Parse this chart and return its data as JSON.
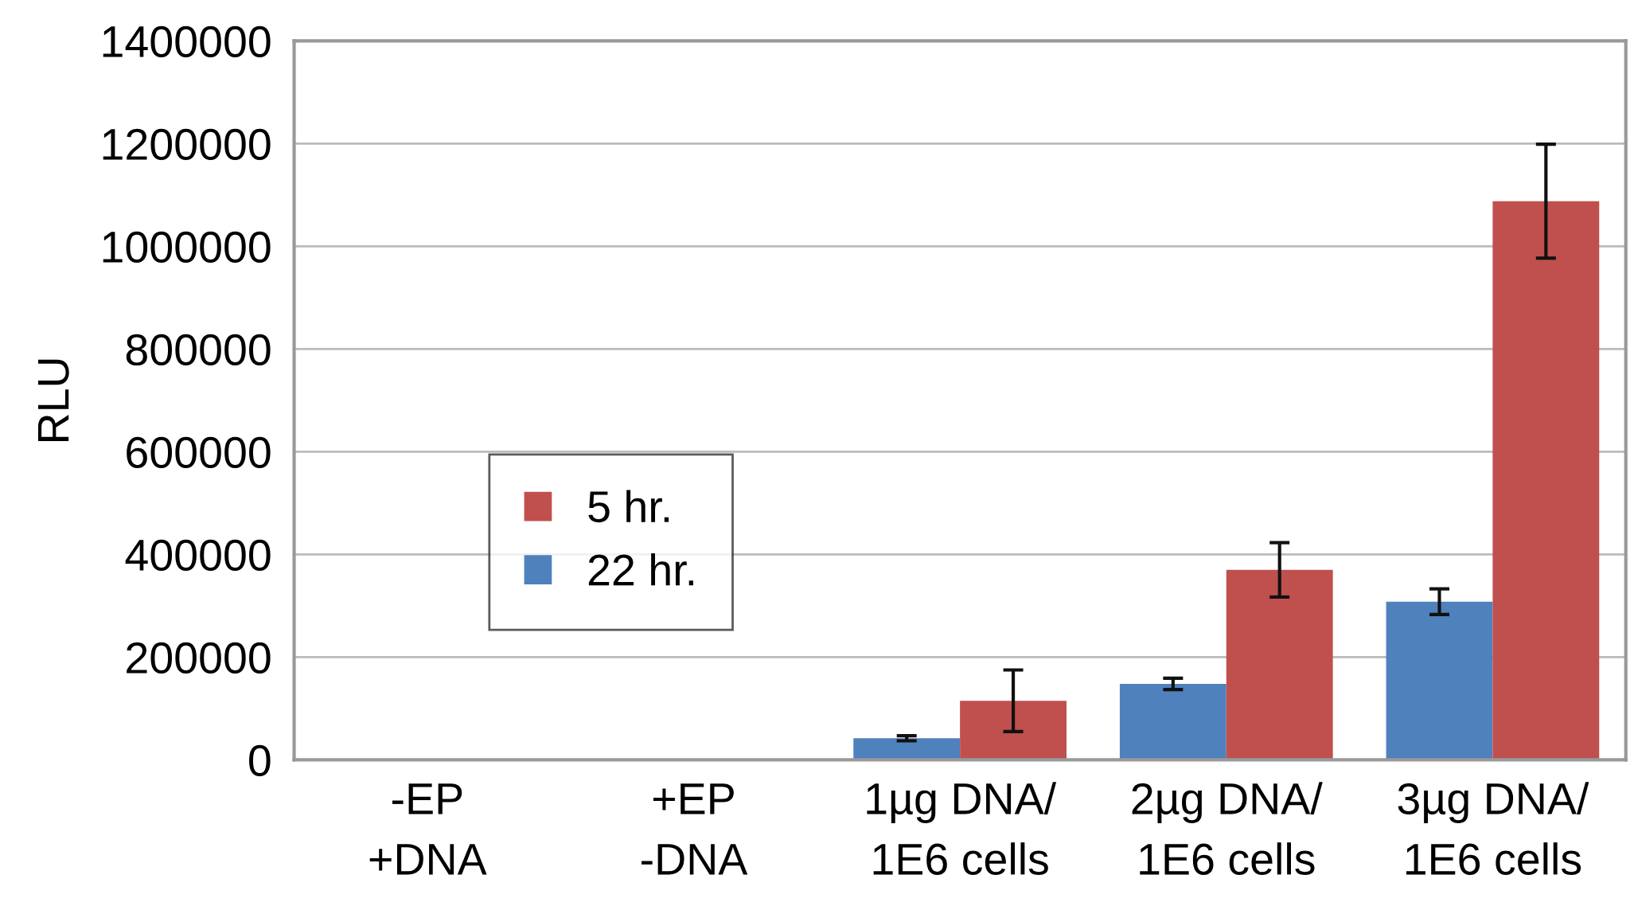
{
  "chart_data": {
    "type": "bar",
    "ylabel": "RLU",
    "categories": [
      "-EP\n+DNA",
      "+EP\n-DNA",
      "1µg DNA/\n1E6 cells",
      "2µg DNA/\n1E6 cells",
      "3µg DNA/\n1E6 cells"
    ],
    "series": [
      {
        "name": "22 hr.",
        "color": "#4f81bd",
        "values": [
          0,
          0,
          42000,
          148000,
          308000
        ],
        "errors": [
          null,
          null,
          5000,
          11000,
          25000
        ]
      },
      {
        "name": "5 hr.",
        "color": "#c0504d",
        "values": [
          0,
          2000,
          115000,
          370000,
          1088000
        ],
        "errors": [
          null,
          null,
          60000,
          53000,
          111000
        ]
      }
    ],
    "ylim": [
      0,
      1400000
    ],
    "yticks": [
      0,
      200000,
      400000,
      600000,
      800000,
      1000000,
      1200000,
      1400000
    ],
    "grid": "y",
    "legend": "lower left"
  }
}
